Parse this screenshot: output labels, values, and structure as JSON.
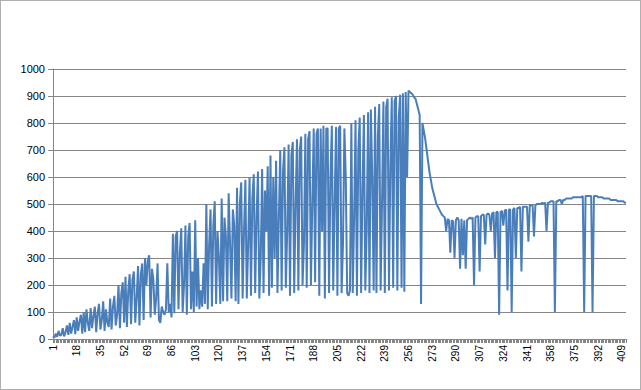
{
  "chart_data": {
    "type": "line",
    "color": "#4a7ebb",
    "grid": true,
    "ylim": [
      0,
      1000
    ],
    "yticks": [
      0,
      100,
      200,
      300,
      400,
      500,
      600,
      700,
      800,
      900,
      1000
    ],
    "categories": [
      "1",
      null,
      null,
      null,
      null,
      null,
      null,
      null,
      null,
      null,
      null,
      null,
      null,
      null,
      null,
      null,
      null,
      "18",
      null,
      null,
      null,
      null,
      null,
      null,
      null,
      null,
      null,
      null,
      null,
      null,
      null,
      null,
      null,
      null,
      "35",
      null,
      null,
      null,
      null,
      null,
      null,
      null,
      null,
      null,
      null,
      null,
      null,
      null,
      null,
      null,
      null,
      "52",
      null,
      null,
      null,
      null,
      null,
      null,
      null,
      null,
      null,
      null,
      null,
      null,
      null,
      null,
      null,
      null,
      "69",
      null,
      null,
      null,
      null,
      null,
      null,
      null,
      null,
      null,
      null,
      null,
      null,
      null,
      null,
      null,
      null,
      "86",
      null,
      null,
      null,
      null,
      null,
      null,
      null,
      null,
      null,
      null,
      null,
      null,
      null,
      null,
      null,
      null,
      "103",
      null,
      null,
      null,
      null,
      null,
      null,
      null,
      null,
      null,
      null,
      null,
      null,
      null,
      null,
      null,
      null,
      "120",
      null,
      null,
      null,
      null,
      null,
      null,
      null,
      null,
      null,
      null,
      null,
      null,
      null,
      null,
      null,
      null,
      "137",
      null,
      null,
      null,
      null,
      null,
      null,
      null,
      null,
      null,
      null,
      null,
      null,
      null,
      null,
      null,
      null,
      "154",
      null,
      null,
      null,
      null,
      null,
      null,
      null,
      null,
      null,
      null,
      null,
      null,
      null,
      null,
      null,
      null,
      "171",
      null,
      null,
      null,
      null,
      null,
      null,
      null,
      null,
      null,
      null,
      null,
      null,
      null,
      null,
      null,
      null,
      "188",
      null,
      null,
      null,
      null,
      null,
      null,
      null,
      null,
      null,
      null,
      null,
      null,
      null,
      null,
      null,
      null,
      "205",
      null,
      null,
      null,
      null,
      null,
      null,
      null,
      null,
      null,
      null,
      null,
      null,
      null,
      null,
      null,
      null,
      "222",
      null,
      null,
      null,
      null,
      null,
      null,
      null,
      null,
      null,
      null,
      null,
      null,
      null,
      null,
      null,
      null,
      "239",
      null,
      null,
      null,
      null,
      null,
      null,
      null,
      null,
      null,
      null,
      null,
      null,
      null,
      null,
      null,
      null,
      "256",
      null,
      null,
      null,
      null,
      null,
      null,
      null,
      null,
      null,
      null,
      null,
      null,
      null,
      null,
      null,
      null,
      "273",
      null,
      null,
      null,
      null,
      null,
      null,
      null,
      null,
      null,
      null,
      null,
      null,
      null,
      null,
      null,
      null,
      "290",
      null,
      null,
      null,
      null,
      null,
      null,
      null,
      null,
      null,
      null,
      null,
      null,
      null,
      null,
      null,
      null,
      "307",
      null,
      null,
      null,
      null,
      null,
      null,
      null,
      null,
      null,
      null,
      null,
      null,
      null,
      null,
      null,
      null,
      "324",
      null,
      null,
      null,
      null,
      null,
      null,
      null,
      null,
      null,
      null,
      null,
      null,
      null,
      null,
      null,
      null,
      "341",
      null,
      null,
      null,
      null,
      null,
      null,
      null,
      null,
      null,
      null,
      null,
      null,
      null,
      null,
      null,
      null,
      "358",
      null,
      null,
      null,
      null,
      null,
      null,
      null,
      null,
      null,
      null,
      null,
      null,
      null,
      null,
      null,
      null,
      "375",
      null,
      null,
      null,
      null,
      null,
      null,
      null,
      null,
      null,
      null,
      null,
      null,
      null,
      null,
      null,
      null,
      "392",
      null,
      null,
      null,
      null,
      null,
      null,
      null,
      null,
      null,
      null,
      null,
      null,
      null,
      null,
      null,
      null,
      "409",
      null,
      null,
      null
    ],
    "values": [
      10,
      5,
      20,
      8,
      30,
      12,
      15,
      40,
      10,
      25,
      50,
      15,
      60,
      20,
      45,
      70,
      18,
      80,
      30,
      65,
      90,
      20,
      100,
      25,
      110,
      60,
      30,
      115,
      40,
      85,
      120,
      25,
      95,
      130,
      35,
      70,
      140,
      30,
      110,
      60,
      45,
      150,
      35,
      120,
      160,
      50,
      90,
      200,
      40,
      170,
      210,
      60,
      230,
      45,
      180,
      240,
      55,
      220,
      250,
      60,
      150,
      270,
      50,
      240,
      280,
      70,
      300,
      200,
      290,
      310,
      80,
      260,
      220,
      90,
      150,
      280,
      70,
      60,
      120,
      100,
      90,
      110,
      280,
      100,
      130,
      80,
      390,
      95,
      380,
      400,
      110,
      320,
      410,
      100,
      200,
      420,
      90,
      380,
      430,
      110,
      250,
      100,
      440,
      120,
      300,
      110,
      180,
      120,
      280,
      130,
      500,
      110,
      350,
      480,
      120,
      420,
      510,
      130,
      400,
      300,
      130,
      520,
      140,
      450,
      380,
      140,
      540,
      350,
      150,
      480,
      420,
      140,
      560,
      130,
      500,
      580,
      150,
      400,
      590,
      150,
      350,
      600,
      160,
      520,
      610,
      170,
      450,
      620,
      150,
      300,
      630,
      170,
      550,
      400,
      640,
      160,
      680,
      190,
      600,
      300,
      660,
      170,
      450,
      700,
      180,
      620,
      710,
      190,
      400,
      720,
      160,
      680,
      730,
      170,
      500,
      740,
      180,
      700,
      750,
      200,
      350,
      760,
      190,
      740,
      770,
      200,
      500,
      780,
      210,
      760,
      780,
      160,
      780,
      400,
      790,
      150,
      780,
      780,
      170,
      600,
      790,
      180,
      500,
      785,
      160,
      780,
      790,
      170,
      350,
      780,
      600,
      170,
      160,
      180,
      800,
      170,
      450,
      810,
      160,
      700,
      820,
      170,
      550,
      830,
      180,
      400,
      840,
      170,
      850,
      600,
      180,
      860,
      170,
      750,
      870,
      180,
      500,
      880,
      170,
      860,
      890,
      180,
      650,
      895,
      190,
      880,
      900,
      180,
      820,
      905,
      190,
      910,
      175,
      915,
      600,
      920,
      915,
      910,
      905,
      895,
      890,
      870,
      850,
      830,
      130,
      800,
      770,
      740,
      700,
      660,
      620,
      590,
      560,
      540,
      520,
      500,
      490,
      480,
      470,
      460,
      455,
      450,
      400,
      445,
      440,
      320,
      440,
      435,
      300,
      440,
      450,
      440,
      260,
      445,
      310,
      440,
      260,
      440,
      445,
      450,
      445,
      450,
      200,
      450,
      455,
      455,
      250,
      455,
      460,
      460,
      350,
      460,
      465,
      460,
      400,
      465,
      470,
      300,
      470,
      470,
      90,
      470,
      475,
      420,
      475,
      480,
      180,
      480,
      480,
      100,
      480,
      485,
      300,
      485,
      485,
      490,
      250,
      490,
      490,
      490,
      490,
      360,
      495,
      495,
      495,
      380,
      495,
      500,
      500,
      500,
      500,
      505,
      500,
      505,
      400,
      505,
      505,
      510,
      510,
      510,
      100,
      510,
      510,
      515,
      515,
      500,
      515,
      515,
      520,
      520,
      520,
      520,
      520,
      525,
      525,
      525,
      525,
      525,
      525,
      525,
      530,
      100,
      530,
      530,
      530,
      530,
      530,
      100,
      530,
      530,
      530,
      525,
      525,
      525,
      525,
      520,
      520,
      520,
      520,
      520,
      515,
      515,
      515,
      515,
      515,
      510,
      510,
      510,
      510,
      510,
      505,
      505
    ]
  }
}
